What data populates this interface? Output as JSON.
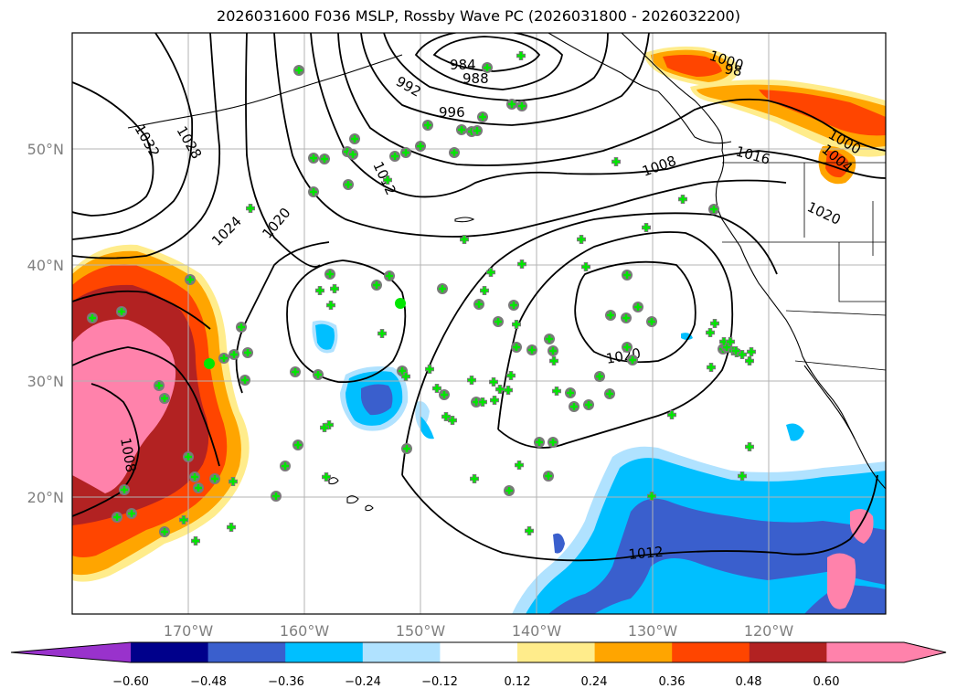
{
  "title": "2026031600 F036 MSLP, Rossby Wave PC (2026031800 - 2026032200)",
  "lat_labels": [
    "50°N",
    "40°N",
    "30°N",
    "20°N"
  ],
  "lon_labels": [
    "170°W",
    "160°W",
    "150°W",
    "140°W",
    "130°W",
    "120°W"
  ],
  "colorbar": {
    "tick_labels": [
      "−0.60",
      "−0.48",
      "−0.36",
      "−0.24",
      "−0.12",
      "0.12",
      "0.24",
      "0.36",
      "0.48",
      "0.60"
    ],
    "colors": [
      "#9932cc",
      "#00008b",
      "#3a5fcd",
      "#00bfff",
      "#b0e2ff",
      "#ffffff",
      "#ffec8b",
      "#ffa500",
      "#ff4500",
      "#b22222",
      "#ff82ab",
      "#ff82ab"
    ]
  },
  "isobar_labels": [
    "984",
    "988",
    "992",
    "996",
    "1000",
    "1004",
    "1008",
    "1008",
    "1012",
    "1012",
    "1016",
    "1020",
    "1020",
    "1020",
    "1024",
    "1028",
    "1032",
    "1000",
    "98"
  ]
}
